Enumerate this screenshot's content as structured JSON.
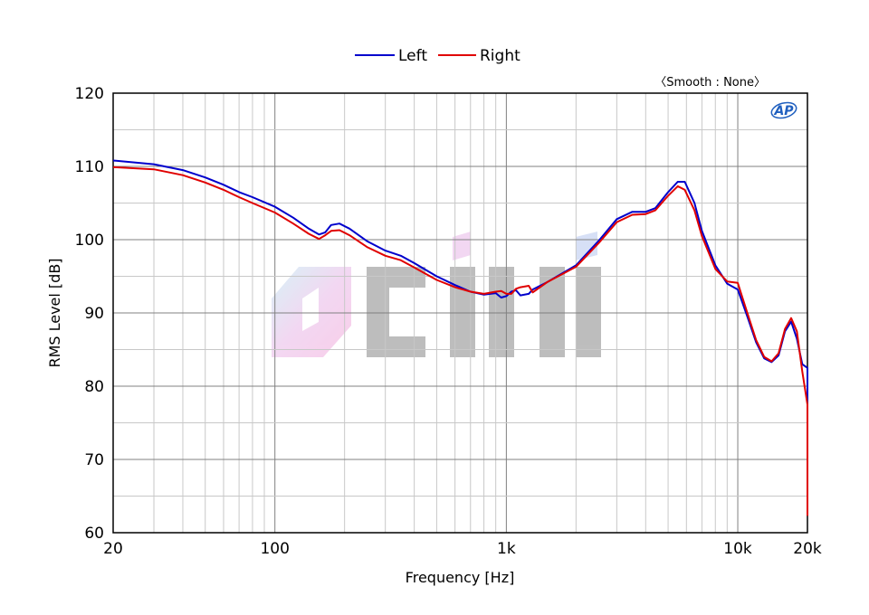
{
  "chart_data": {
    "type": "line",
    "xlabel": "Frequency [Hz]",
    "ylabel": "RMS Level [dB]",
    "x_scale": "log",
    "xlim": [
      20,
      20000
    ],
    "ylim": [
      60,
      120
    ],
    "grid": true,
    "legend_position": "top-center",
    "smoothing_note": "〈Smooth : None〉",
    "logo_text": "AP",
    "x_ticks": [
      {
        "value": 20,
        "label": "20"
      },
      {
        "value": 100,
        "label": "100"
      },
      {
        "value": 1000,
        "label": "1k"
      },
      {
        "value": 10000,
        "label": "10k"
      },
      {
        "value": 20000,
        "label": "20k"
      }
    ],
    "y_ticks": [
      {
        "value": 60,
        "label": "60"
      },
      {
        "value": 70,
        "label": "70"
      },
      {
        "value": 80,
        "label": "80"
      },
      {
        "value": 90,
        "label": "90"
      },
      {
        "value": 100,
        "label": "100"
      },
      {
        "value": 110,
        "label": "110"
      },
      {
        "value": 120,
        "label": "120"
      }
    ],
    "series": [
      {
        "name": "Left",
        "color": "#0000cc",
        "points": [
          [
            20,
            110.8
          ],
          [
            30,
            110.3
          ],
          [
            40,
            109.5
          ],
          [
            50,
            108.5
          ],
          [
            60,
            107.5
          ],
          [
            70,
            106.5
          ],
          [
            80,
            105.8
          ],
          [
            100,
            104.5
          ],
          [
            120,
            103.0
          ],
          [
            140,
            101.5
          ],
          [
            155,
            100.7
          ],
          [
            165,
            101.0
          ],
          [
            175,
            102.0
          ],
          [
            190,
            102.2
          ],
          [
            210,
            101.5
          ],
          [
            250,
            99.8
          ],
          [
            300,
            98.5
          ],
          [
            350,
            97.8
          ],
          [
            400,
            96.8
          ],
          [
            500,
            95.0
          ],
          [
            600,
            93.8
          ],
          [
            700,
            92.9
          ],
          [
            800,
            92.5
          ],
          [
            900,
            92.7
          ],
          [
            950,
            92.1
          ],
          [
            1000,
            92.3
          ],
          [
            1050,
            92.9
          ],
          [
            1100,
            93.1
          ],
          [
            1150,
            92.4
          ],
          [
            1250,
            92.6
          ],
          [
            1300,
            93.2
          ],
          [
            1500,
            94.2
          ],
          [
            2000,
            96.5
          ],
          [
            2500,
            99.8
          ],
          [
            3000,
            102.8
          ],
          [
            3500,
            103.8
          ],
          [
            4000,
            103.8
          ],
          [
            4400,
            104.3
          ],
          [
            5000,
            106.5
          ],
          [
            5500,
            107.9
          ],
          [
            5900,
            107.9
          ],
          [
            6500,
            105.0
          ],
          [
            7000,
            101.2
          ],
          [
            8000,
            96.5
          ],
          [
            9000,
            94.0
          ],
          [
            10000,
            93.2
          ],
          [
            11000,
            89.5
          ],
          [
            12000,
            86.0
          ],
          [
            13000,
            83.8
          ],
          [
            14000,
            83.3
          ],
          [
            15000,
            84.2
          ],
          [
            16000,
            87.5
          ],
          [
            17000,
            88.8
          ],
          [
            18000,
            86.5
          ],
          [
            19000,
            83.0
          ],
          [
            20000,
            82.5
          ],
          [
            21000,
            79.8
          ],
          [
            22000,
            74.0
          ],
          [
            23000,
            65.0
          ],
          [
            24000,
            63.5
          ]
        ]
      },
      {
        "name": "Right",
        "color": "#e00000",
        "points": [
          [
            20,
            109.9
          ],
          [
            30,
            109.6
          ],
          [
            40,
            108.8
          ],
          [
            50,
            107.8
          ],
          [
            60,
            106.8
          ],
          [
            70,
            105.8
          ],
          [
            80,
            105.0
          ],
          [
            100,
            103.7
          ],
          [
            120,
            102.2
          ],
          [
            140,
            100.8
          ],
          [
            155,
            100.1
          ],
          [
            165,
            100.6
          ],
          [
            175,
            101.2
          ],
          [
            190,
            101.3
          ],
          [
            210,
            100.6
          ],
          [
            250,
            99.0
          ],
          [
            300,
            97.8
          ],
          [
            350,
            97.2
          ],
          [
            400,
            96.2
          ],
          [
            500,
            94.5
          ],
          [
            600,
            93.5
          ],
          [
            700,
            92.9
          ],
          [
            800,
            92.6
          ],
          [
            900,
            92.9
          ],
          [
            950,
            93.0
          ],
          [
            1000,
            92.6
          ],
          [
            1050,
            92.6
          ],
          [
            1100,
            93.3
          ],
          [
            1150,
            93.5
          ],
          [
            1250,
            93.7
          ],
          [
            1300,
            92.8
          ],
          [
            1500,
            94.2
          ],
          [
            2000,
            96.3
          ],
          [
            2500,
            99.5
          ],
          [
            3000,
            102.4
          ],
          [
            3500,
            103.4
          ],
          [
            4000,
            103.5
          ],
          [
            4400,
            104.0
          ],
          [
            5000,
            106.0
          ],
          [
            5500,
            107.3
          ],
          [
            5900,
            106.8
          ],
          [
            6500,
            104.0
          ],
          [
            7000,
            100.5
          ],
          [
            8000,
            96.0
          ],
          [
            9000,
            94.3
          ],
          [
            10000,
            94.1
          ],
          [
            11000,
            90.0
          ],
          [
            12000,
            86.3
          ],
          [
            13000,
            84.0
          ],
          [
            14000,
            83.4
          ],
          [
            15000,
            84.5
          ],
          [
            16000,
            87.8
          ],
          [
            17000,
            89.3
          ],
          [
            18000,
            87.5
          ],
          [
            19000,
            82.0
          ],
          [
            20000,
            77.5
          ],
          [
            21000,
            74.3
          ],
          [
            22000,
            75.2
          ],
          [
            23000,
            68.0
          ],
          [
            24000,
            62.3
          ]
        ]
      }
    ]
  }
}
